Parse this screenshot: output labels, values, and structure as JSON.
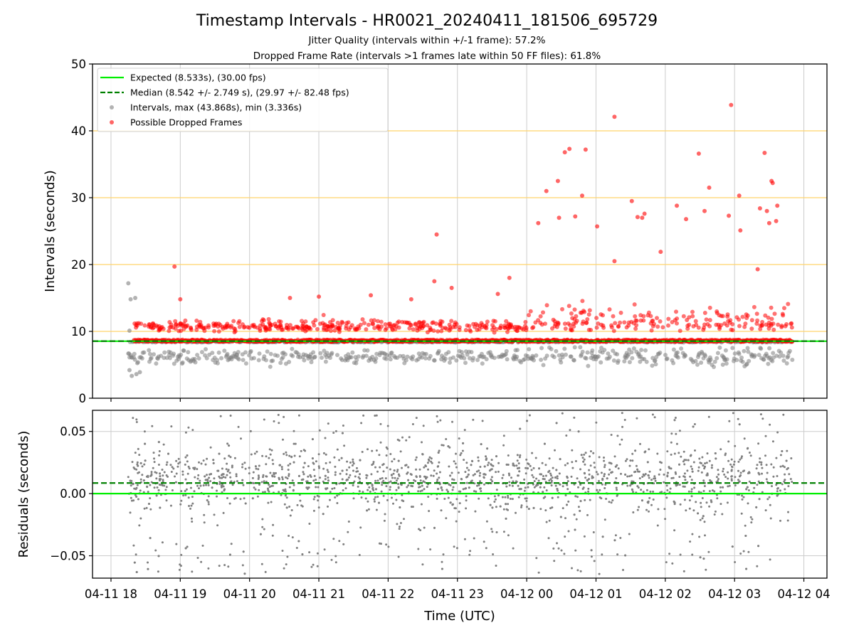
{
  "title": "Timestamp Intervals - HR0021_20240411_181506_695729",
  "subtitle1": "Jitter Quality (intervals within +/-1 frame): 57.2%",
  "subtitle2": "Dropped Frame Rate (intervals >1 frames late within 50 FF files): 61.8%",
  "colors": {
    "expected": "#00ee00",
    "median": "#008000",
    "intervals": "#808080",
    "dropped": "#ff0000",
    "hlines": "#ffd36b",
    "grid": "#cccccc"
  },
  "chart_data": [
    {
      "type": "scatter",
      "ylabel": "Intervals (seconds)",
      "ylim": [
        0,
        50
      ],
      "yticks": [
        0,
        10,
        20,
        30,
        40,
        50
      ],
      "xlim": [
        "2024-04-11T17:44",
        "2024-04-12T04:20"
      ],
      "grid": true,
      "legend_position": "upper-left",
      "reference_lines": {
        "y": [
          10,
          20,
          30,
          40
        ],
        "color": "orange"
      },
      "legend": [
        "Expected (8.533s), (30.00 fps)",
        "Median (8.542 +/- 2.749 s), (29.97 +/- 82.48 fps)",
        "Intervals, max (43.868s), min (3.336s)",
        "Possible Dropped Frames"
      ],
      "series": [
        {
          "name": "Expected (8.533s), (30.00 fps)",
          "kind": "hline",
          "y": 8.533
        },
        {
          "name": "Median (8.542 +/- 2.749 s), (29.97 +/- 82.48 fps)",
          "kind": "hline",
          "y": 8.542
        },
        {
          "name": "Intervals, max (43.868s), min (3.336s)",
          "kind": "scatter",
          "summary": {
            "x_start": "2024-04-11T18:15",
            "x_end": "2024-04-12T03:50",
            "typical_range": [
              4.5,
              9.5
            ],
            "max": 43.868,
            "min": 3.336
          },
          "points": [
            [
              "2024-04-11T18:15",
              17.2
            ],
            [
              "2024-04-11T18:17",
              14.8
            ],
            [
              "2024-04-11T18:21",
              15.0
            ],
            [
              "2024-04-11T18:16",
              4.2
            ],
            [
              "2024-04-11T18:18",
              3.34
            ],
            [
              "2024-04-11T18:22",
              3.6
            ],
            [
              "2024-04-11T18:25",
              3.9
            ],
            [
              "2024-04-11T18:16",
              10.1
            ]
          ]
        },
        {
          "name": "Possible Dropped Frames",
          "kind": "scatter",
          "summary": {
            "x_start": "2024-04-11T18:20",
            "x_end": "2024-04-12T03:50",
            "typical_range": [
              8.5,
              15.0
            ],
            "max": 43.868
          },
          "points": [
            [
              "2024-04-11T18:55",
              19.7
            ],
            [
              "2024-04-11T19:00",
              14.8
            ],
            [
              "2024-04-11T20:35",
              15.0
            ],
            [
              "2024-04-11T21:00",
              15.2
            ],
            [
              "2024-04-11T21:45",
              15.4
            ],
            [
              "2024-04-11T22:20",
              14.8
            ],
            [
              "2024-04-11T22:40",
              17.5
            ],
            [
              "2024-04-11T22:42",
              24.5
            ],
            [
              "2024-04-11T22:55",
              16.5
            ],
            [
              "2024-04-11T23:35",
              15.6
            ],
            [
              "2024-04-11T23:45",
              18.0
            ],
            [
              "2024-04-12T00:10",
              26.2
            ],
            [
              "2024-04-12T00:17",
              31.0
            ],
            [
              "2024-04-12T00:27",
              32.5
            ],
            [
              "2024-04-12T00:28",
              27.0
            ],
            [
              "2024-04-12T00:33",
              36.8
            ],
            [
              "2024-04-12T00:37",
              37.3
            ],
            [
              "2024-04-12T00:42",
              27.2
            ],
            [
              "2024-04-12T00:48",
              30.3
            ],
            [
              "2024-04-12T00:51",
              37.2
            ],
            [
              "2024-04-12T01:01",
              25.7
            ],
            [
              "2024-04-12T01:16",
              42.1
            ],
            [
              "2024-04-12T01:16",
              20.5
            ],
            [
              "2024-04-12T01:31",
              29.5
            ],
            [
              "2024-04-12T01:36",
              27.1
            ],
            [
              "2024-04-12T01:40",
              27.0
            ],
            [
              "2024-04-12T01:42",
              27.6
            ],
            [
              "2024-04-12T01:56",
              21.9
            ],
            [
              "2024-04-12T02:10",
              28.8
            ],
            [
              "2024-04-12T02:18",
              26.8
            ],
            [
              "2024-04-12T02:29",
              36.6
            ],
            [
              "2024-04-12T02:34",
              28.0
            ],
            [
              "2024-04-12T02:38",
              31.5
            ],
            [
              "2024-04-12T02:55",
              27.3
            ],
            [
              "2024-04-12T02:57",
              43.868
            ],
            [
              "2024-04-12T03:04",
              30.3
            ],
            [
              "2024-04-12T03:05",
              25.1
            ],
            [
              "2024-04-12T03:22",
              28.4
            ],
            [
              "2024-04-12T03:26",
              36.7
            ],
            [
              "2024-04-12T03:28",
              28.0
            ],
            [
              "2024-04-12T03:30",
              26.2
            ],
            [
              "2024-04-12T03:32",
              32.5
            ],
            [
              "2024-04-12T03:33",
              32.2
            ],
            [
              "2024-04-12T03:36",
              26.5
            ],
            [
              "2024-04-12T03:37",
              28.8
            ],
            [
              "2024-04-12T03:20",
              19.3
            ]
          ]
        }
      ]
    },
    {
      "type": "scatter",
      "xlabel": "Time (UTC)",
      "ylabel": "Residuals (seconds)",
      "ylim": [
        -0.068,
        0.067
      ],
      "yticks": [
        -0.05,
        0.0,
        0.05
      ],
      "ytick_labels": [
        "−0.05",
        "0.00",
        "0.05"
      ],
      "xlim": [
        "2024-04-11T17:44",
        "2024-04-12T04:20"
      ],
      "xticks": [
        "04-11 18",
        "04-11 19",
        "04-11 20",
        "04-11 21",
        "04-11 22",
        "04-11 23",
        "04-12 00",
        "04-12 01",
        "04-12 02",
        "04-12 03",
        "04-12 04"
      ],
      "grid": true,
      "series": [
        {
          "name": "Expected",
          "kind": "hline",
          "y": 0.0
        },
        {
          "name": "Median",
          "kind": "hline",
          "y": 0.0085
        },
        {
          "name": "Residuals",
          "kind": "scatter",
          "summary": {
            "x_start": "2024-04-11T18:15",
            "x_end": "2024-04-12T03:50",
            "range": [
              -0.068,
              0.067
            ]
          }
        }
      ]
    }
  ]
}
